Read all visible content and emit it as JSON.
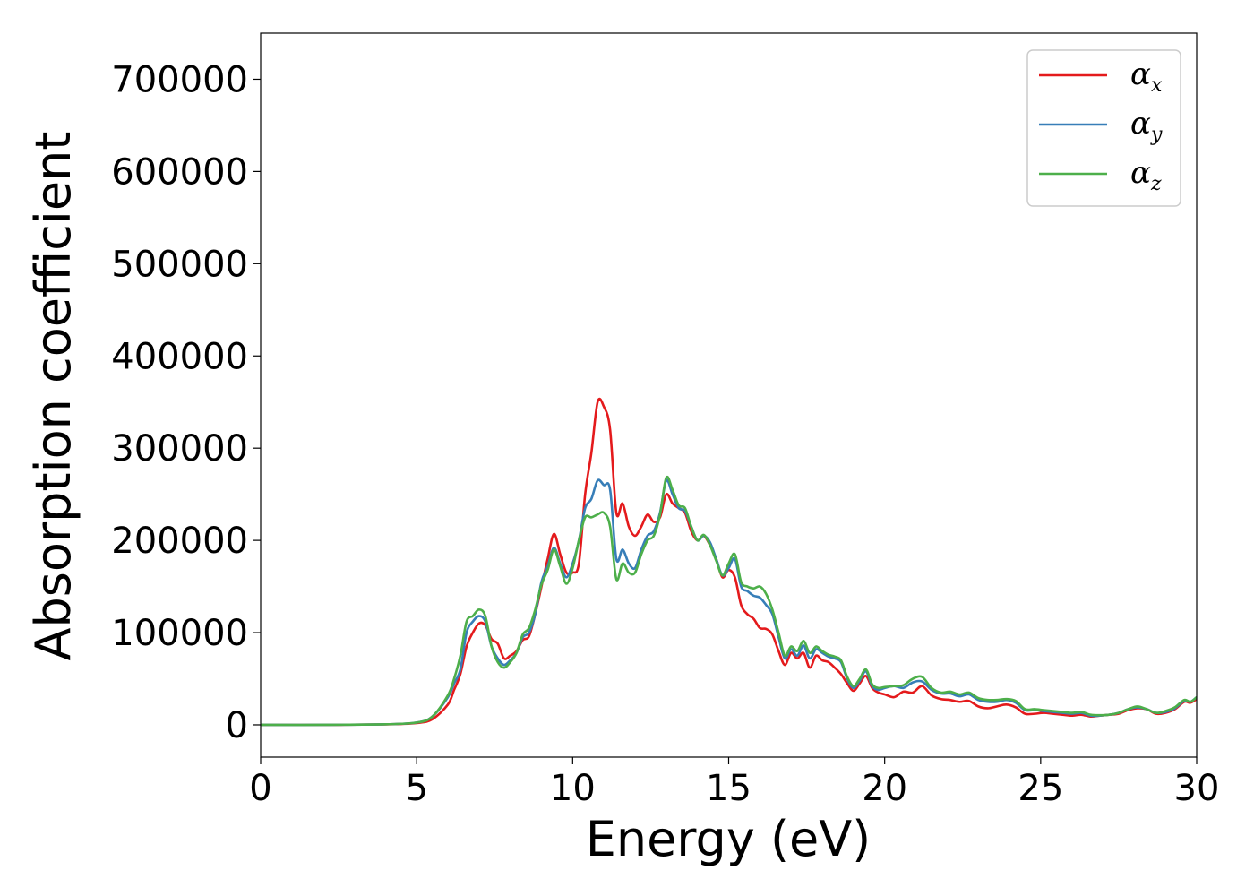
{
  "chart_data": {
    "type": "line",
    "xlabel": "Energy (eV)",
    "ylabel": "Absorption coefficient",
    "xlim": [
      0,
      30
    ],
    "ylim": [
      -35000,
      750000
    ],
    "xticks": [
      0,
      5,
      10,
      15,
      20,
      25,
      30
    ],
    "yticks": [
      0,
      100000,
      200000,
      300000,
      400000,
      500000,
      600000,
      700000
    ],
    "grid": false,
    "legend_position": "top-right",
    "x": [
      0,
      2,
      4,
      5,
      5.5,
      6,
      6.2,
      6.4,
      6.6,
      6.8,
      7.0,
      7.2,
      7.4,
      7.6,
      7.8,
      8.0,
      8.2,
      8.4,
      8.6,
      8.8,
      9.0,
      9.2,
      9.4,
      9.6,
      9.8,
      10.0,
      10.2,
      10.4,
      10.6,
      10.8,
      11.0,
      11.2,
      11.4,
      11.6,
      11.8,
      12.0,
      12.2,
      12.4,
      12.6,
      12.8,
      13.0,
      13.2,
      13.4,
      13.6,
      13.8,
      14.0,
      14.2,
      14.4,
      14.6,
      14.8,
      15.0,
      15.2,
      15.4,
      15.6,
      15.8,
      16.0,
      16.2,
      16.4,
      16.6,
      16.8,
      17.0,
      17.2,
      17.4,
      17.6,
      17.8,
      18.0,
      18.2,
      18.4,
      18.6,
      18.8,
      19.0,
      19.2,
      19.4,
      19.6,
      19.8,
      20.0,
      20.3,
      20.6,
      20.9,
      21.2,
      21.5,
      21.8,
      22.1,
      22.4,
      22.7,
      23.0,
      23.3,
      23.6,
      23.9,
      24.2,
      24.5,
      24.8,
      25.1,
      25.4,
      25.7,
      26.0,
      26.3,
      26.6,
      26.9,
      27.2,
      27.5,
      27.8,
      28.1,
      28.4,
      28.7,
      29.0,
      29.3,
      29.6,
      29.8,
      30.0
    ],
    "series": [
      {
        "name": "α_x",
        "color": "#e41a1c",
        "values": [
          0,
          0,
          500,
          2000,
          6000,
          22000,
          38000,
          55000,
          85000,
          100000,
          110000,
          108000,
          93000,
          88000,
          72000,
          75000,
          80000,
          92000,
          96000,
          120000,
          150000,
          180000,
          207000,
          185000,
          165000,
          165000,
          175000,
          250000,
          295000,
          350000,
          345000,
          320000,
          230000,
          240000,
          215000,
          205000,
          215000,
          228000,
          220000,
          225000,
          250000,
          240000,
          235000,
          230000,
          210000,
          200000,
          205000,
          195000,
          180000,
          160000,
          168000,
          160000,
          130000,
          120000,
          115000,
          105000,
          104000,
          98000,
          80000,
          65000,
          78000,
          72000,
          78000,
          62000,
          75000,
          70000,
          68000,
          62000,
          55000,
          45000,
          37000,
          45000,
          53000,
          40000,
          35000,
          33000,
          30000,
          36000,
          35000,
          42000,
          32000,
          28000,
          27000,
          25000,
          26000,
          20000,
          18000,
          20000,
          22000,
          19000,
          12000,
          12000,
          13000,
          12000,
          11000,
          10000,
          11000,
          9000,
          10000,
          11000,
          12000,
          16000,
          18000,
          17000,
          12000,
          13000,
          17000,
          25000,
          24000,
          28000
        ]
      },
      {
        "name": "α_y",
        "color": "#377eb8",
        "values": [
          0,
          0,
          600,
          2500,
          9000,
          30000,
          45000,
          60000,
          100000,
          112000,
          118000,
          112000,
          85000,
          72000,
          65000,
          70000,
          78000,
          95000,
          100000,
          120000,
          155000,
          172000,
          192000,
          175000,
          160000,
          175000,
          200000,
          235000,
          245000,
          265000,
          260000,
          255000,
          180000,
          190000,
          175000,
          170000,
          190000,
          205000,
          210000,
          230000,
          265000,
          250000,
          235000,
          232000,
          215000,
          200000,
          205000,
          198000,
          180000,
          162000,
          170000,
          180000,
          150000,
          145000,
          140000,
          138000,
          130000,
          120000,
          95000,
          72000,
          82000,
          75000,
          86000,
          72000,
          82000,
          78000,
          74000,
          72000,
          68000,
          50000,
          40000,
          48000,
          58000,
          42000,
          38000,
          40000,
          42000,
          40000,
          46000,
          47000,
          38000,
          34000,
          34000,
          31000,
          33000,
          27000,
          25000,
          25000,
          27000,
          24000,
          16000,
          16000,
          15000,
          14000,
          13000,
          12000,
          13000,
          10000,
          10000,
          11000,
          13000,
          17000,
          19000,
          17000,
          13000,
          14000,
          18000,
          26000,
          25000,
          30000
        ]
      },
      {
        "name": "α_z",
        "color": "#4daf4a",
        "values": [
          0,
          0,
          600,
          2500,
          9000,
          32000,
          50000,
          75000,
          112000,
          118000,
          125000,
          118000,
          85000,
          68000,
          62000,
          68000,
          78000,
          98000,
          105000,
          125000,
          152000,
          168000,
          190000,
          172000,
          153000,
          170000,
          200000,
          225000,
          225000,
          228000,
          230000,
          215000,
          158000,
          175000,
          165000,
          165000,
          185000,
          200000,
          205000,
          228000,
          268000,
          255000,
          238000,
          235000,
          215000,
          200000,
          206000,
          195000,
          178000,
          162000,
          175000,
          185000,
          155000,
          150000,
          148000,
          150000,
          142000,
          125000,
          100000,
          75000,
          85000,
          80000,
          91000,
          78000,
          85000,
          80000,
          76000,
          74000,
          70000,
          52000,
          42000,
          50000,
          60000,
          44000,
          40000,
          41000,
          42000,
          43000,
          50000,
          52000,
          40000,
          35000,
          36000,
          33000,
          35000,
          29000,
          27000,
          27000,
          28000,
          26000,
          17000,
          17000,
          16000,
          15000,
          14000,
          13000,
          14000,
          11000,
          10500,
          11000,
          13000,
          17000,
          20000,
          17000,
          13000,
          15000,
          19000,
          27000,
          25000,
          30000
        ]
      }
    ]
  },
  "legend": {
    "entries": [
      {
        "symbol": "α",
        "sub": "x",
        "color": "#e41a1c"
      },
      {
        "symbol": "α",
        "sub": "y",
        "color": "#377eb8"
      },
      {
        "symbol": "α",
        "sub": "z",
        "color": "#4daf4a"
      }
    ]
  }
}
